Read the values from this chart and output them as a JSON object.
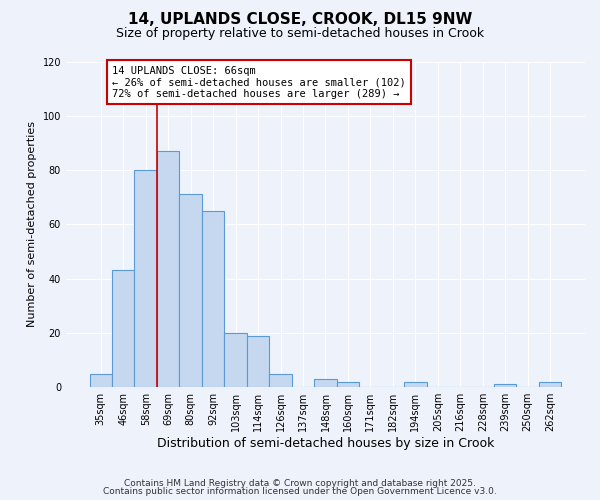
{
  "title": "14, UPLANDS CLOSE, CROOK, DL15 9NW",
  "subtitle": "Size of property relative to semi-detached houses in Crook",
  "xlabel": "Distribution of semi-detached houses by size in Crook",
  "ylabel": "Number of semi-detached properties",
  "bar_labels": [
    "35sqm",
    "46sqm",
    "58sqm",
    "69sqm",
    "80sqm",
    "92sqm",
    "103sqm",
    "114sqm",
    "126sqm",
    "137sqm",
    "148sqm",
    "160sqm",
    "171sqm",
    "182sqm",
    "194sqm",
    "205sqm",
    "216sqm",
    "228sqm",
    "239sqm",
    "250sqm",
    "262sqm"
  ],
  "bar_values": [
    5,
    43,
    80,
    87,
    71,
    65,
    20,
    19,
    5,
    0,
    3,
    2,
    0,
    0,
    2,
    0,
    0,
    0,
    1,
    0,
    2
  ],
  "bar_color": "#c5d8f0",
  "bar_edge_color": "#5b9bd5",
  "property_line_x": 3,
  "property_line_color": "#cc0000",
  "annotation_line1": "14 UPLANDS CLOSE: 66sqm",
  "annotation_line2": "← 26% of semi-detached houses are smaller (102)",
  "annotation_line3": "72% of semi-detached houses are larger (289) →",
  "annotation_box_edge": "#cc0000",
  "annotation_box_bg": "#ffffff",
  "ylim": [
    0,
    120
  ],
  "yticks": [
    0,
    20,
    40,
    60,
    80,
    100,
    120
  ],
  "bg_color": "#eef2fb",
  "plot_bg_color": "#eef2fb",
  "grid_color": "#ffffff",
  "footer1": "Contains HM Land Registry data © Crown copyright and database right 2025.",
  "footer2": "Contains public sector information licensed under the Open Government Licence v3.0.",
  "title_fontsize": 11,
  "subtitle_fontsize": 9,
  "xlabel_fontsize": 9,
  "ylabel_fontsize": 8,
  "tick_fontsize": 7,
  "annotation_fontsize": 7.5,
  "footer_fontsize": 6.5
}
